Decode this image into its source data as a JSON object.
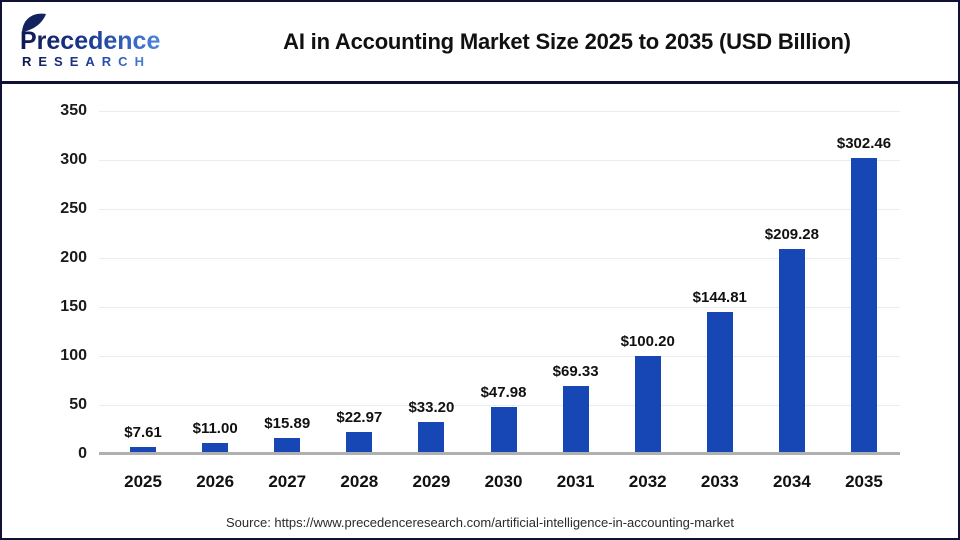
{
  "header": {
    "logo": {
      "line1": "Precedence",
      "line2": "RESEARCH"
    },
    "title": "AI in Accounting Market Size 2025 to 2035 (USD Billion)"
  },
  "colors": {
    "bar": "#1747B4",
    "border": "#0F1135",
    "gridline": "#ECECEC",
    "baseline": "#B0B0B0",
    "logo_navy": "#10194E",
    "logo_mid": "#1C3A96",
    "logo_blue": "#4B86DD"
  },
  "chart_data": {
    "type": "bar",
    "title": "AI in Accounting Market Size 2025 to 2035 (USD Billion)",
    "categories": [
      "2025",
      "2026",
      "2027",
      "2028",
      "2029",
      "2030",
      "2031",
      "2032",
      "2033",
      "2034",
      "2035"
    ],
    "values": [
      7.61,
      11.0,
      15.89,
      22.97,
      33.2,
      47.98,
      69.33,
      100.2,
      144.81,
      209.28,
      302.46
    ],
    "value_labels": [
      "$7.61",
      "$11.00",
      "$15.89",
      "$22.97",
      "$33.20",
      "$47.98",
      "$69.33",
      "$100.20",
      "$144.81",
      "$209.28",
      "$302.46"
    ],
    "xlabel": "",
    "ylabel": "",
    "ylim": [
      0,
      350
    ],
    "y_ticks": [
      350,
      300,
      250,
      200,
      150,
      100,
      50,
      0
    ],
    "grid": "horizontal",
    "legend": "none",
    "bar_color": "#1747B4"
  },
  "footer": {
    "source": "Source: https://www.precedenceresearch.com/artificial-intelligence-in-accounting-market"
  }
}
